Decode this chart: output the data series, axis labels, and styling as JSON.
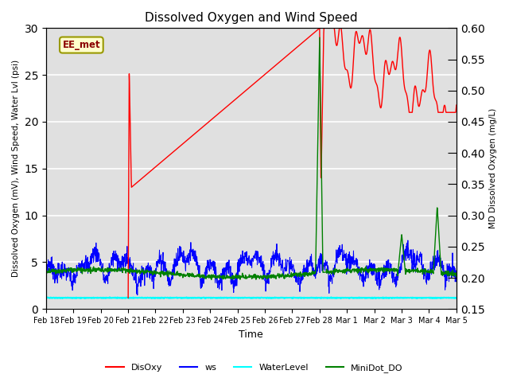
{
  "title": "Dissolved Oxygen and Wind Speed",
  "ylabel_left": "Dissolved Oxygen (mV), Wind Speed, Water Lvl (psi)",
  "ylabel_right": "MD Dissolved Oxygen (mg/L)",
  "xlabel": "Time",
  "ylim_left": [
    0,
    30
  ],
  "ylim_right": [
    0.15,
    0.6
  ],
  "background_color": "#e0e0e0",
  "annotation_text": "EE_met",
  "annotation_box_color": "#ffffcc",
  "annotation_box_edge": "#999900",
  "legend_items": [
    "DisOxy",
    "ws",
    "WaterLevel",
    "MiniDot_DO"
  ],
  "legend_colors": [
    "red",
    "blue",
    "cyan",
    "green"
  ],
  "xtick_labels": [
    "Feb 18",
    "Feb 19",
    "Feb 20",
    "Feb 21",
    "Feb 22",
    "Feb 23",
    "Feb 24",
    "Feb 25",
    "Feb 26",
    "Feb 27",
    "Feb 28",
    "Mar 1",
    "Mar 2",
    "Mar 3",
    "Mar 4",
    "Mar 5"
  ],
  "yticks_left": [
    0,
    5,
    10,
    15,
    20,
    25,
    30
  ],
  "yticks_right": [
    0.15,
    0.2,
    0.25,
    0.3,
    0.35,
    0.4,
    0.45,
    0.5,
    0.55,
    0.6
  ]
}
